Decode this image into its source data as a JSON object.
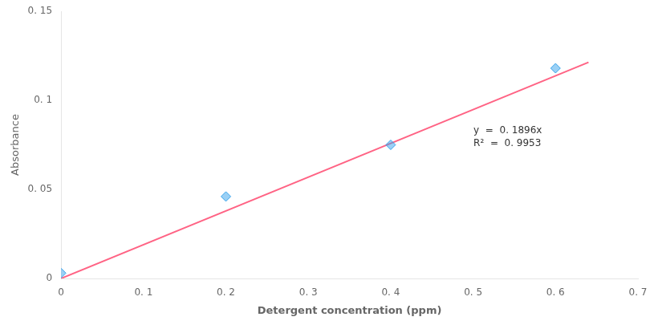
{
  "chart_data": {
    "type": "scatter",
    "x_label": "Detergent concentration (ppm)",
    "y_label": "Absorbance",
    "series": [
      {
        "type": "scatter",
        "x": [
          0,
          0.2,
          0.4,
          0.6
        ],
        "values": [
          0.003,
          0.046,
          0.075,
          0.118
        ],
        "marker": "diamond"
      },
      {
        "type": "line",
        "x": [
          0,
          0.64
        ],
        "values": [
          0,
          0.121344
        ],
        "line_style": "solid"
      }
    ],
    "xlim": [
      0,
      0.7
    ],
    "ylim": [
      0,
      0.15
    ],
    "xticks": [
      0,
      {
        "value": 0.1,
        "label": "0. 1"
      },
      {
        "value": 0.2,
        "label": "0. 2"
      },
      {
        "value": 0.3,
        "label": "0. 3"
      },
      {
        "value": 0.4,
        "label": "0. 4"
      },
      {
        "value": 0.5,
        "label": "0. 5"
      },
      {
        "value": 0.6,
        "label": "0. 6"
      },
      {
        "value": 0.7,
        "label": "0. 7"
      }
    ],
    "yticks": [
      0,
      {
        "value": 0.05,
        "label": "0. 05"
      },
      {
        "value": 0.1,
        "label": "0. 1"
      },
      {
        "value": 0.15,
        "label": "0. 15"
      }
    ],
    "annotations": [
      "y  =  0. 1896x",
      "R²  =  0. 9953"
    ],
    "grid": false
  }
}
